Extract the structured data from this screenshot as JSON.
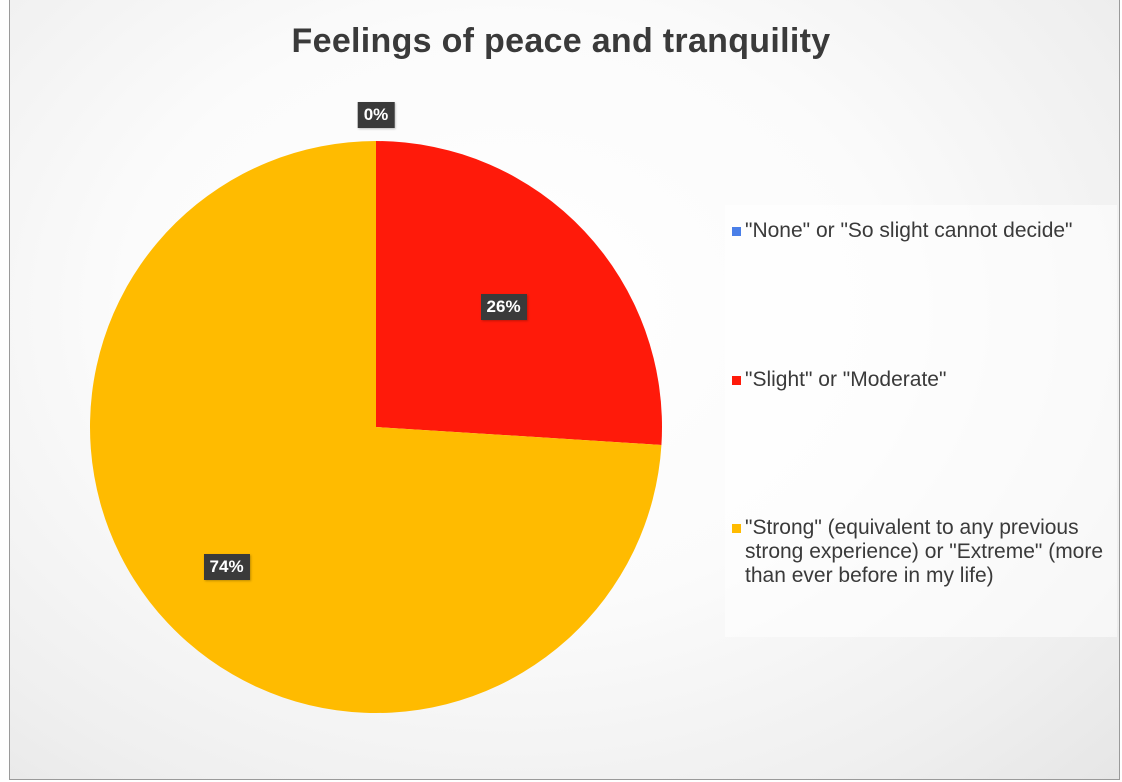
{
  "chart_data": {
    "type": "pie",
    "title": "Feelings of peace and tranquility",
    "categories": [
      "\"None\" or \"So slight cannot decide\"",
      "\"Slight\" or \"Moderate\"",
      "\"Strong\" (equivalent to any previous strong experience) or \"Extreme\" (more than ever before in my life)"
    ],
    "values": [
      0,
      26,
      74
    ],
    "data_labels": [
      "0%",
      "26%",
      "74%"
    ],
    "colors": [
      "#4a7fe8",
      "#ff1a0a",
      "#ffbb00"
    ],
    "legend_position": "right"
  }
}
